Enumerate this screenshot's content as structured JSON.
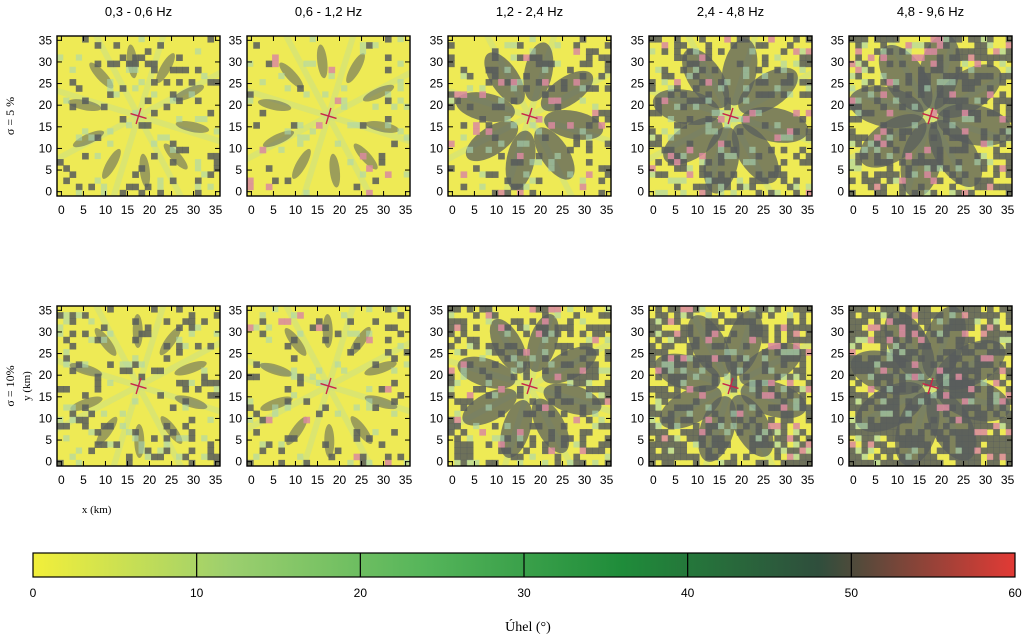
{
  "chart_data": {
    "type": "heatmap",
    "columns": [
      "0,3 - 0,6 Hz",
      "0,6 - 1,2 Hz",
      "1,2 - 2,4 Hz",
      "2,4 - 4,8 Hz",
      "4,8 - 9,6 Hz"
    ],
    "rows": [
      "σ = 5 %",
      "σ = 10%"
    ],
    "xlabel": "x (km)",
    "ylabel": "y (km)",
    "xlim": [
      -1,
      36
    ],
    "ylim": [
      -1,
      36
    ],
    "xticks": [
      "0",
      "5",
      "10",
      "15",
      "20",
      "25",
      "30",
      "35"
    ],
    "yticks": [
      "0",
      "5",
      "10",
      "15",
      "20",
      "25",
      "30",
      "35"
    ],
    "epicenter": {
      "x": 17.5,
      "y": 17.5
    },
    "dark_fraction": [
      [
        0.15,
        0.05,
        0.22,
        0.35,
        0.5
      ],
      [
        0.18,
        0.12,
        0.38,
        0.55,
        0.75
      ]
    ],
    "colorbar": {
      "label": "Úhel (°)",
      "min": 0,
      "max": 60,
      "ticks": [
        "0",
        "10",
        "20",
        "30",
        "40",
        "50",
        "60"
      ],
      "colors": [
        "#f2ef3a",
        "#9ccf6e",
        "#55b55a",
        "#1f8c3a",
        "#2f4e3c",
        "#e23a35"
      ]
    },
    "grid": false
  }
}
